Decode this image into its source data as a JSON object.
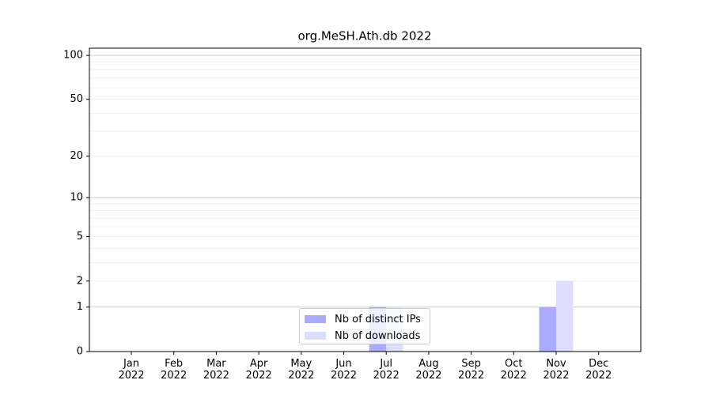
{
  "chart_data": {
    "type": "bar",
    "title": "org.MeSH.Ath.db 2022",
    "categories": [
      "Jan\n2022",
      "Feb\n2022",
      "Mar\n2022",
      "Apr\n2022",
      "May\n2022",
      "Jun\n2022",
      "Jul\n2022",
      "Aug\n2022",
      "Sep\n2022",
      "Oct\n2022",
      "Nov\n2022",
      "Dec\n2022"
    ],
    "series": [
      {
        "name": "Nb of distinct IPs",
        "color": "#aaaaff",
        "values": [
          0,
          0,
          0,
          0,
          0,
          0,
          1,
          0,
          0,
          0,
          1,
          0
        ]
      },
      {
        "name": "Nb of downloads",
        "color": "#ddddff",
        "values": [
          0,
          0,
          0,
          0,
          0,
          0,
          1,
          0,
          0,
          0,
          2,
          0
        ]
      }
    ],
    "yscale": "log1p",
    "ylim": [
      0,
      112
    ],
    "yticks": [
      0,
      1,
      2,
      5,
      10,
      20,
      50,
      100
    ],
    "major_grid": [
      1,
      10,
      100
    ],
    "minor_grid": [
      2,
      3,
      4,
      5,
      6,
      7,
      8,
      9,
      20,
      30,
      40,
      50,
      60,
      70,
      80,
      90
    ],
    "legend": "lower center"
  }
}
